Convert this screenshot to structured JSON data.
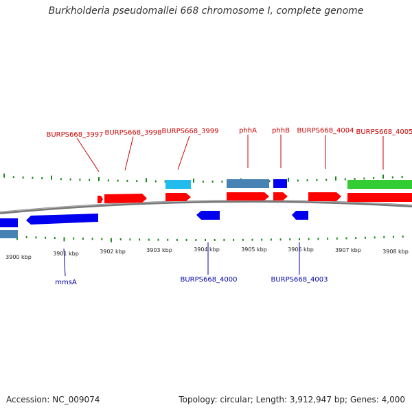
{
  "title": "Burkholderia pseudomallei 668 chromosome I, complete genome",
  "footer": {
    "accession": "Accession: NC_009074",
    "summary": "Topology: circular; Length: 3,912,947 bp; Genes: 4,000"
  },
  "colors": {
    "forward_gene": "#ff0000",
    "reverse_gene": "#0000ee",
    "orf_light_blue": "#22bbee",
    "orf_steel_blue": "#4682b4",
    "orf_green": "#33cc33",
    "tick_green": "#1a8a1a",
    "backbone": "#888888",
    "forward_label": "#cc0000",
    "reverse_label": "#0000aa"
  },
  "scale_labels": [
    "3900 kbp",
    "3901 kbp",
    "3902 kbp",
    "3903 kbp",
    "3904 kbp",
    "3905 kbp",
    "3906 kbp",
    "3907 kbp",
    "3908 kbp"
  ],
  "forward_labels": [
    "BURPS668_3997",
    "BURPS668_3998",
    "BURPS668_3999",
    "phhA",
    "phhB",
    "BURPS668_4004",
    "BURPS668_4005"
  ],
  "reverse_labels": [
    "mmsA",
    "BURPS668_4000",
    "BURPS668_4003"
  ]
}
